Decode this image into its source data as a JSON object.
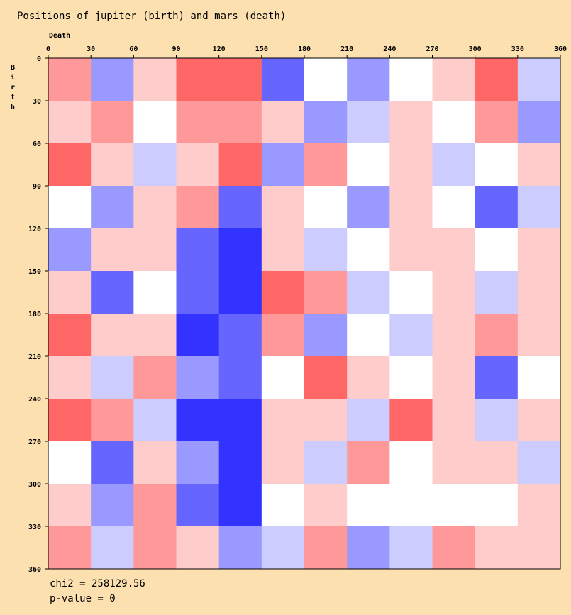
{
  "chart_data": {
    "type": "heatmap",
    "title": "Positions of jupiter (birth) and mars (death)",
    "xlabel": "Death",
    "ylabel": "Birth",
    "xlim": [
      0,
      360
    ],
    "ylim": [
      0,
      360
    ],
    "xticks": [
      0,
      30,
      60,
      90,
      120,
      150,
      180,
      210,
      240,
      270,
      300,
      330,
      360
    ],
    "yticks": [
      0,
      30,
      60,
      90,
      120,
      150,
      180,
      210,
      240,
      270,
      300,
      330,
      360
    ],
    "zlim": [
      -0.5,
      0.5
    ],
    "color_pos": "#ff0000",
    "color_neg": "#0000ff",
    "z": [
      [
        0.2,
        -0.2,
        0.1,
        0.3,
        0.3,
        -0.3,
        0.0,
        -0.2,
        0.0,
        0.1,
        0.3,
        -0.1
      ],
      [
        0.1,
        0.2,
        0.0,
        0.2,
        0.2,
        0.1,
        -0.2,
        -0.1,
        0.1,
        0.0,
        0.2,
        -0.2
      ],
      [
        0.3,
        0.1,
        -0.1,
        0.1,
        0.3,
        -0.2,
        0.2,
        0.0,
        0.1,
        -0.1,
        0.0,
        0.1
      ],
      [
        0.0,
        -0.2,
        0.1,
        0.2,
        -0.3,
        0.1,
        0.0,
        -0.2,
        0.1,
        0.0,
        -0.3,
        -0.1
      ],
      [
        -0.2,
        0.1,
        0.1,
        -0.3,
        -0.4,
        0.1,
        -0.1,
        0.0,
        0.1,
        0.1,
        0.0,
        0.1
      ],
      [
        0.1,
        -0.3,
        0.0,
        -0.3,
        -0.4,
        0.3,
        0.2,
        -0.1,
        0.0,
        0.1,
        -0.1,
        0.1
      ],
      [
        0.3,
        0.1,
        0.1,
        -0.4,
        -0.3,
        0.2,
        -0.2,
        0.0,
        -0.1,
        0.1,
        0.2,
        0.1
      ],
      [
        0.1,
        -0.1,
        0.2,
        -0.2,
        -0.3,
        0.0,
        0.3,
        0.1,
        0.0,
        0.1,
        -0.3,
        0.0
      ],
      [
        0.3,
        0.2,
        -0.1,
        -0.4,
        -0.4,
        0.1,
        0.1,
        -0.1,
        0.3,
        0.1,
        -0.1,
        0.1
      ],
      [
        0.0,
        -0.3,
        0.1,
        -0.2,
        -0.4,
        0.1,
        -0.1,
        0.2,
        0.0,
        0.1,
        0.1,
        -0.1
      ],
      [
        0.1,
        -0.2,
        0.2,
        -0.3,
        -0.4,
        0.0,
        0.1,
        0.0,
        0.0,
        0.0,
        0.0,
        0.1
      ],
      [
        0.2,
        -0.1,
        0.2,
        0.1,
        -0.2,
        -0.1,
        0.2,
        -0.2,
        -0.1,
        0.2,
        0.1,
        0.1
      ]
    ],
    "annotations": [
      "chi2 = 258129.56",
      "p-value = 0"
    ]
  }
}
